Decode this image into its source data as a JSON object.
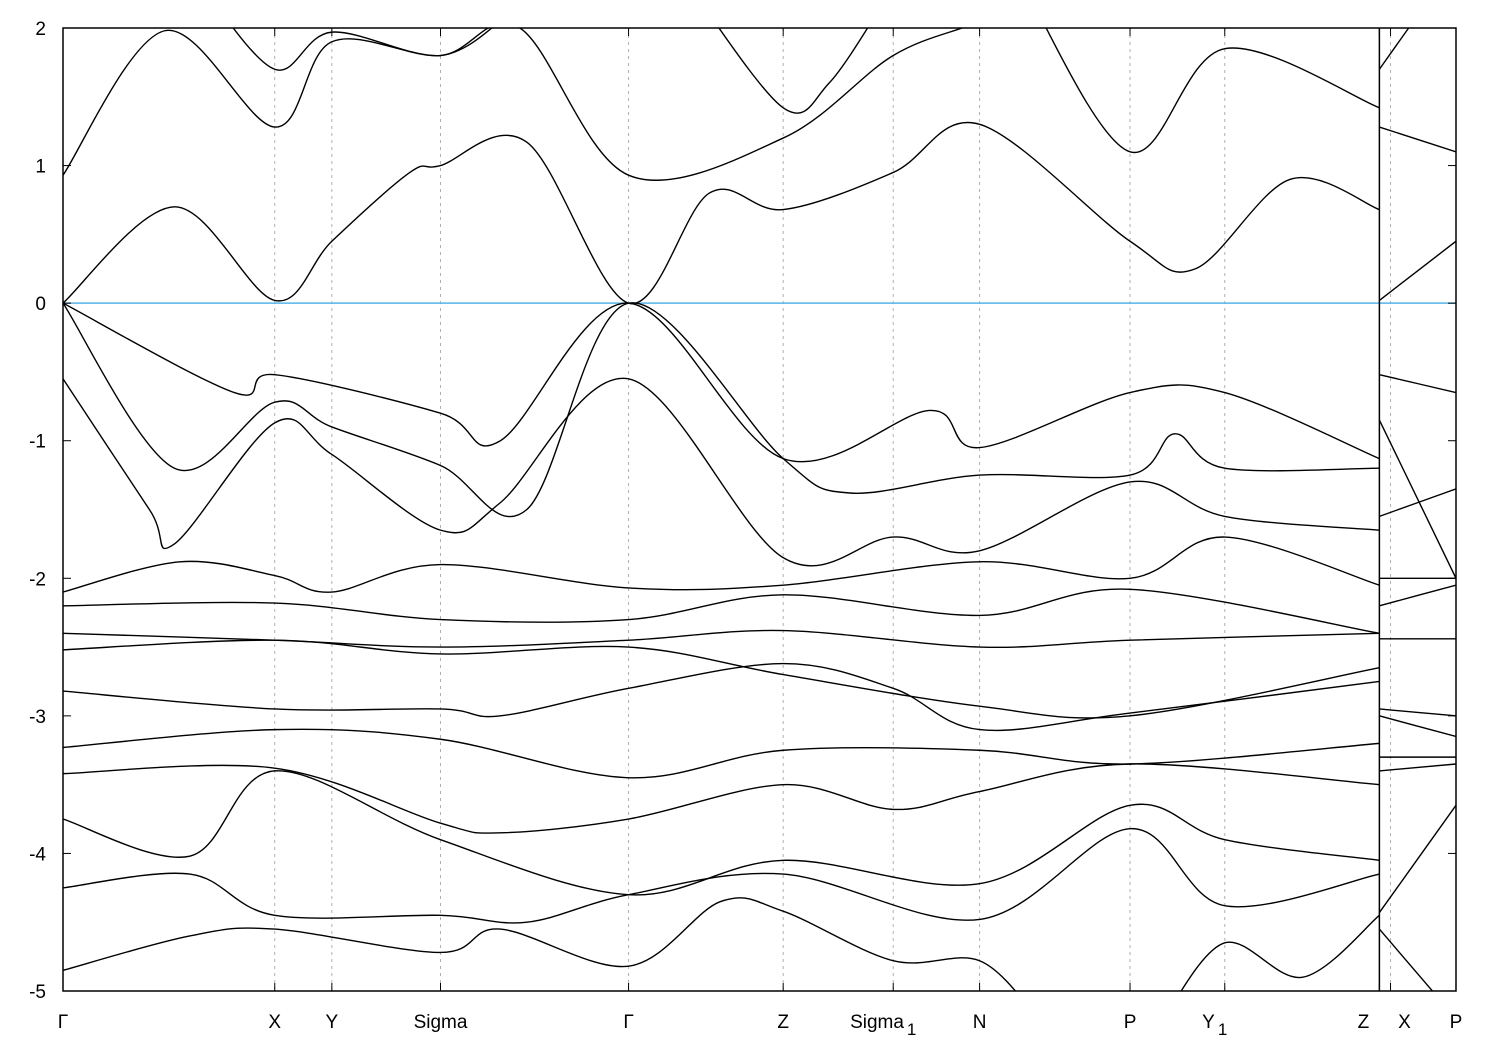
{
  "chart_data": {
    "type": "line",
    "title": "",
    "xlabel": "",
    "ylabel": "",
    "ylim": [
      -5,
      2
    ],
    "yticks": [
      2,
      1,
      0,
      -1,
      -2,
      -3,
      -4,
      -5
    ],
    "ytick_labels": [
      "2",
      "1",
      "0",
      "-1",
      "-2",
      "-3",
      "-4",
      "-5"
    ],
    "xlim": [
      0,
      10.0
    ],
    "xticks": [
      {
        "k": 0,
        "label": "Γ",
        "sub": ""
      },
      {
        "k": 1.52,
        "label": "X",
        "sub": ""
      },
      {
        "k": 1.93,
        "label": "Y",
        "sub": ""
      },
      {
        "k": 2.71,
        "label": "Sigma",
        "sub": ""
      },
      {
        "k": 4.06,
        "label": "Γ",
        "sub": ""
      },
      {
        "k": 5.17,
        "label": "Z",
        "sub": ""
      },
      {
        "k": 5.96,
        "label": "Sigma",
        "sub": "1"
      },
      {
        "k": 6.58,
        "label": "N",
        "sub": ""
      },
      {
        "k": 7.66,
        "label": "P",
        "sub": ""
      },
      {
        "k": 8.34,
        "label": "Y",
        "sub": "1"
      },
      {
        "k": 9.45,
        "label": "Z",
        "sub": ""
      },
      {
        "k": 9.53,
        "label": "X",
        "sub": ""
      },
      {
        "k": 10.0,
        "label": "P",
        "sub": ""
      }
    ],
    "path_break_k": 9.45,
    "grid": "vertical dashed at high-symmetry points",
    "fermi_level": {
      "energy": 0,
      "color": "#56b4e9"
    },
    "band_color": "#000000",
    "bands": [
      {
        "main": [
          [
            0,
            0
          ],
          [
            0.8,
            0.7
          ],
          [
            1.52,
            0.02
          ],
          [
            1.93,
            0.45
          ],
          [
            2.49,
            0.95
          ],
          [
            2.71,
            1.0
          ],
          [
            3.33,
            1.17
          ],
          [
            4.06,
            0
          ],
          [
            4.64,
            0.8
          ],
          [
            5.17,
            0.68
          ],
          [
            5.96,
            0.95
          ],
          [
            6.58,
            1.3
          ],
          [
            7.66,
            0.45
          ],
          [
            8.13,
            0.25
          ],
          [
            8.81,
            0.9
          ],
          [
            9.45,
            0.68
          ]
        ],
        "tail": [
          [
            9.45,
            0.02
          ],
          [
            10.0,
            0.45
          ]
        ]
      },
      {
        "main": [
          [
            0,
            0.93
          ],
          [
            0.73,
            1.98
          ],
          [
            1.52,
            1.28
          ],
          [
            1.93,
            1.9
          ],
          [
            2.71,
            1.8
          ],
          [
            3.28,
            2.0
          ],
          [
            4.06,
            0.93
          ],
          [
            5.17,
            1.2
          ],
          [
            5.96,
            1.8
          ],
          [
            6.58,
            2.05
          ],
          [
            7.0,
            2.3
          ]
        ],
        "tail": [
          [
            9.45,
            1.28
          ],
          [
            10.0,
            1.1
          ]
        ]
      },
      {
        "main": [
          [
            6.9,
            2.3
          ],
          [
            7.66,
            1.1
          ],
          [
            8.34,
            1.85
          ],
          [
            9.45,
            1.42
          ]
        ],
        "tail": []
      },
      {
        "main": [
          [
            1.0,
            2.3
          ],
          [
            1.52,
            1.7
          ],
          [
            1.93,
            1.97
          ],
          [
            2.71,
            1.8
          ],
          [
            3.2,
            2.1
          ]
        ],
        "tail": [
          [
            9.45,
            1.7
          ],
          [
            9.8,
            2.2
          ]
        ]
      },
      {
        "main": [
          [
            4.5,
            2.3
          ],
          [
            5.17,
            1.42
          ],
          [
            5.5,
            1.6
          ],
          [
            5.9,
            2.2
          ]
        ],
        "tail": []
      },
      {
        "main": [
          [
            0,
            0
          ],
          [
            1.23,
            -0.65
          ],
          [
            1.52,
            -0.52
          ],
          [
            2.71,
            -0.8
          ],
          [
            3.14,
            -1.0
          ],
          [
            4.06,
            0
          ],
          [
            5.17,
            -1.13
          ],
          [
            6.22,
            -0.78
          ],
          [
            6.58,
            -1.05
          ],
          [
            7.66,
            -0.65
          ],
          [
            8.34,
            -0.65
          ],
          [
            9.45,
            -1.13
          ]
        ],
        "tail": [
          [
            9.45,
            -0.52
          ],
          [
            10.0,
            -0.65
          ]
        ]
      },
      {
        "main": [
          [
            0,
            0
          ],
          [
            0.8,
            -1.2
          ],
          [
            1.52,
            -0.72
          ],
          [
            1.93,
            -0.9
          ],
          [
            2.71,
            -1.18
          ],
          [
            3.33,
            -1.5
          ],
          [
            4.06,
            0
          ],
          [
            5.17,
            -1.13
          ],
          [
            5.65,
            -1.38
          ],
          [
            6.58,
            -1.25
          ],
          [
            7.66,
            -1.25
          ],
          [
            7.98,
            -0.95
          ],
          [
            8.34,
            -1.2
          ],
          [
            9.45,
            -1.2
          ]
        ],
        "tail": [
          [
            9.45,
            -0.85
          ],
          [
            10.0,
            -2.0
          ]
        ]
      },
      {
        "main": [
          [
            0,
            -0.55
          ],
          [
            0.62,
            -1.5
          ],
          [
            0.8,
            -1.75
          ],
          [
            1.52,
            -0.87
          ],
          [
            1.93,
            -1.1
          ],
          [
            2.71,
            -1.65
          ],
          [
            3.14,
            -1.45
          ],
          [
            4.06,
            -0.55
          ],
          [
            5.17,
            -1.85
          ],
          [
            5.96,
            -1.7
          ],
          [
            6.58,
            -1.8
          ],
          [
            7.66,
            -1.3
          ],
          [
            8.34,
            -1.55
          ],
          [
            9.45,
            -1.65
          ]
        ],
        "tail": [
          [
            9.45,
            -1.55
          ],
          [
            10.0,
            -1.35
          ]
        ]
      },
      {
        "main": [
          [
            0,
            -2.1
          ],
          [
            0.84,
            -1.88
          ],
          [
            1.52,
            -1.98
          ],
          [
            1.93,
            -2.1
          ],
          [
            2.71,
            -1.9
          ],
          [
            4.06,
            -2.07
          ],
          [
            5.17,
            -2.05
          ],
          [
            6.58,
            -1.88
          ],
          [
            7.66,
            -2.0
          ],
          [
            8.34,
            -1.7
          ],
          [
            9.45,
            -2.05
          ]
        ],
        "tail": [
          [
            9.45,
            -2.2
          ],
          [
            10.0,
            -2.05
          ]
        ]
      },
      {
        "main": [
          [
            0,
            -2.2
          ],
          [
            1.52,
            -2.18
          ],
          [
            2.71,
            -2.3
          ],
          [
            4.06,
            -2.3
          ],
          [
            5.17,
            -2.12
          ],
          [
            6.58,
            -2.27
          ],
          [
            7.66,
            -2.08
          ],
          [
            9.45,
            -2.4
          ]
        ],
        "tail": [
          [
            9.45,
            -2.0
          ],
          [
            10.0,
            -2.0
          ]
        ]
      },
      {
        "main": [
          [
            0,
            -2.4
          ],
          [
            1.52,
            -2.45
          ],
          [
            2.71,
            -2.5
          ],
          [
            4.06,
            -2.45
          ],
          [
            5.17,
            -2.38
          ],
          [
            6.58,
            -2.5
          ],
          [
            7.66,
            -2.45
          ],
          [
            9.45,
            -2.4
          ]
        ],
        "tail": [
          [
            9.45,
            -2.44
          ],
          [
            10.0,
            -2.44
          ]
        ]
      },
      {
        "main": [
          [
            0,
            -2.52
          ],
          [
            1.52,
            -2.45
          ],
          [
            2.71,
            -2.55
          ],
          [
            4.06,
            -2.5
          ],
          [
            5.17,
            -2.7
          ],
          [
            6.58,
            -2.93
          ],
          [
            7.66,
            -3.0
          ],
          [
            9.45,
            -2.65
          ]
        ],
        "tail": [
          [
            9.45,
            -2.95
          ],
          [
            10.0,
            -3.0
          ]
        ]
      },
      {
        "main": [
          [
            0,
            -2.82
          ],
          [
            1.52,
            -2.95
          ],
          [
            2.71,
            -2.95
          ],
          [
            3.14,
            -3.0
          ],
          [
            4.06,
            -2.8
          ],
          [
            5.17,
            -2.62
          ],
          [
            5.96,
            -2.8
          ],
          [
            6.58,
            -3.1
          ],
          [
            7.66,
            -2.98
          ],
          [
            9.45,
            -2.75
          ]
        ],
        "tail": [
          [
            9.45,
            -3.0
          ],
          [
            10.0,
            -3.15
          ]
        ]
      },
      {
        "main": [
          [
            0,
            -3.23
          ],
          [
            1.52,
            -3.1
          ],
          [
            2.71,
            -3.17
          ],
          [
            4.06,
            -3.45
          ],
          [
            5.17,
            -3.25
          ],
          [
            6.58,
            -3.25
          ],
          [
            7.66,
            -3.35
          ],
          [
            9.45,
            -3.2
          ]
        ],
        "tail": [
          [
            9.45,
            -3.3
          ],
          [
            10.0,
            -3.3
          ]
        ]
      },
      {
        "main": [
          [
            0,
            -3.42
          ],
          [
            1.52,
            -3.38
          ],
          [
            2.71,
            -3.78
          ],
          [
            3.14,
            -3.85
          ],
          [
            4.06,
            -3.75
          ],
          [
            5.17,
            -3.5
          ],
          [
            5.96,
            -3.68
          ],
          [
            6.58,
            -3.55
          ],
          [
            7.66,
            -3.35
          ],
          [
            9.45,
            -3.5
          ]
        ],
        "tail": [
          [
            9.45,
            -3.4
          ],
          [
            10.0,
            -3.35
          ]
        ]
      },
      {
        "main": [
          [
            0,
            -3.75
          ],
          [
            0.91,
            -4.02
          ],
          [
            1.52,
            -3.4
          ],
          [
            2.71,
            -3.9
          ],
          [
            4.06,
            -4.3
          ],
          [
            5.17,
            -4.05
          ],
          [
            6.58,
            -4.22
          ],
          [
            7.66,
            -3.65
          ],
          [
            8.34,
            -3.9
          ],
          [
            9.45,
            -4.05
          ]
        ],
        "tail": []
      },
      {
        "main": [
          [
            0,
            -4.25
          ],
          [
            0.91,
            -4.15
          ],
          [
            1.52,
            -4.45
          ],
          [
            2.71,
            -4.45
          ],
          [
            3.33,
            -4.5
          ],
          [
            4.06,
            -4.3
          ],
          [
            5.17,
            -4.15
          ],
          [
            6.58,
            -4.48
          ],
          [
            7.66,
            -3.82
          ],
          [
            8.34,
            -4.38
          ],
          [
            9.45,
            -4.15
          ]
        ],
        "tail": [
          [
            9.45,
            -4.43
          ],
          [
            10.0,
            -3.65
          ]
        ]
      },
      {
        "main": [
          [
            0,
            -4.85
          ],
          [
            0.91,
            -4.6
          ],
          [
            1.52,
            -4.55
          ],
          [
            2.71,
            -4.72
          ],
          [
            3.14,
            -4.55
          ],
          [
            4.06,
            -4.82
          ],
          [
            4.72,
            -4.35
          ],
          [
            5.17,
            -4.42
          ],
          [
            5.96,
            -4.78
          ],
          [
            6.58,
            -4.78
          ],
          [
            7.0,
            -5.2
          ]
        ],
        "tail": [
          [
            9.45,
            -4.55
          ],
          [
            10.0,
            -5.2
          ]
        ]
      },
      {
        "main": [
          [
            7.9,
            -5.2
          ],
          [
            8.34,
            -4.65
          ],
          [
            8.9,
            -4.9
          ],
          [
            9.45,
            -4.45
          ]
        ],
        "tail": []
      }
    ]
  }
}
